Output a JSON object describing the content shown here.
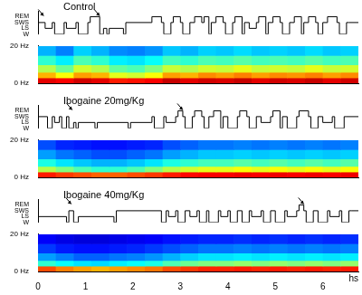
{
  "chart_data": [
    {
      "type": "hypnogram_spectrogram",
      "title": "Control",
      "xlim": [
        0,
        6.75
      ],
      "tick_labels": "y",
      "grid": false,
      "hypnogram": {
        "color": "#000000",
        "ylim": [
          0,
          4
        ],
        "yticks": [
          {
            "value": 0,
            "label": "W"
          },
          {
            "value": 1,
            "label": "LS"
          },
          {
            "value": 2,
            "label": "SWS"
          },
          {
            "value": 3,
            "label": "REM"
          }
        ],
        "x": [
          0,
          0.15,
          0.3,
          0.35,
          0.55,
          0.6,
          0.8,
          0.85,
          1.05,
          1.1,
          1.3,
          1.38,
          1.45,
          1.5,
          1.8,
          1.85,
          2.4,
          2.6,
          2.65,
          2.8,
          2.85,
          3.0,
          3.05,
          3.2,
          3.3,
          3.45,
          3.5,
          3.6,
          3.65,
          3.75,
          3.9,
          3.95,
          4.1,
          4.15,
          4.3,
          4.35,
          4.45,
          4.6,
          4.65,
          4.8,
          4.85,
          4.95,
          5.1,
          5.15,
          5.3,
          5.4,
          5.55,
          5.6,
          5.7,
          5.85,
          5.9,
          6.0,
          6.1,
          6.3,
          6.35,
          6.5,
          6.55,
          6.75
        ],
        "values": [
          0,
          2,
          1,
          2,
          0,
          2,
          1,
          2,
          0,
          2,
          3,
          0,
          1,
          0,
          1,
          0,
          2,
          3,
          2,
          0,
          2,
          3,
          2,
          0,
          2,
          3,
          2,
          3,
          0,
          2,
          3,
          2,
          0,
          2,
          3,
          0,
          2,
          1,
          2,
          3,
          0,
          2,
          3,
          2,
          0,
          2,
          3,
          0,
          2,
          3,
          2,
          0,
          2,
          3,
          2,
          0,
          2,
          2
        ],
        "arrows": [
          0.12,
          1.3
        ]
      },
      "spectrogram": {
        "ylim": [
          0,
          20
        ],
        "yticks": [
          {
            "value": 0,
            "label": "0 Hz"
          },
          {
            "value": 20,
            "label": "20 Hz"
          }
        ],
        "zlim": [
          0,
          1
        ],
        "time_bins": [
          0,
          0.375,
          0.75,
          1.125,
          1.5,
          1.875,
          2.25,
          2.625,
          3,
          3.375,
          3.75,
          4.125,
          4.5,
          4.875,
          5.25,
          5.625,
          6,
          6.375,
          6.75
        ],
        "freq_bins": [
          0,
          3,
          6,
          10,
          15,
          20
        ],
        "cells": [
          [
            0.9,
            0.88,
            0.92,
            0.9,
            0.85,
            0.86,
            0.88,
            0.93,
            0.9,
            0.92,
            0.91,
            0.93,
            0.9,
            0.92,
            0.91,
            0.93,
            0.9,
            0.92
          ],
          [
            0.7,
            0.62,
            0.72,
            0.7,
            0.6,
            0.58,
            0.62,
            0.72,
            0.7,
            0.74,
            0.72,
            0.75,
            0.72,
            0.74,
            0.73,
            0.75,
            0.72,
            0.74
          ],
          [
            0.55,
            0.48,
            0.58,
            0.55,
            0.47,
            0.45,
            0.5,
            0.57,
            0.55,
            0.58,
            0.57,
            0.6,
            0.57,
            0.58,
            0.57,
            0.6,
            0.57,
            0.58
          ],
          [
            0.42,
            0.36,
            0.45,
            0.42,
            0.36,
            0.35,
            0.38,
            0.44,
            0.42,
            0.45,
            0.44,
            0.46,
            0.44,
            0.45,
            0.44,
            0.46,
            0.44,
            0.45
          ],
          [
            0.3,
            0.25,
            0.33,
            0.3,
            0.26,
            0.25,
            0.27,
            0.32,
            0.3,
            0.33,
            0.32,
            0.34,
            0.32,
            0.33,
            0.32,
            0.34,
            0.32,
            0.33
          ]
        ]
      }
    },
    {
      "type": "hypnogram_spectrogram",
      "title": "Ibogaine 20mg/Kg",
      "xlim": [
        0,
        6.75
      ],
      "tick_labels": "y",
      "grid": false,
      "hypnogram": {
        "color": "#000000",
        "ylim": [
          0,
          4
        ],
        "yticks": [
          {
            "value": 0,
            "label": "W"
          },
          {
            "value": 1,
            "label": "LS"
          },
          {
            "value": 2,
            "label": "SWS"
          },
          {
            "value": 3,
            "label": "REM"
          }
        ],
        "x": [
          0,
          0.2,
          0.3,
          0.35,
          0.45,
          0.5,
          0.6,
          0.65,
          0.75,
          0.8,
          0.85,
          1.2,
          1.25,
          1.9,
          1.95,
          2.4,
          2.45,
          2.65,
          2.7,
          2.9,
          2.95,
          3.05,
          3.1,
          3.25,
          3.3,
          3.45,
          3.5,
          3.6,
          3.7,
          3.85,
          3.9,
          4.0,
          4.2,
          4.25,
          4.4,
          4.45,
          4.6,
          4.7,
          4.9,
          4.95,
          5.1,
          5.15,
          5.25,
          5.45,
          5.5,
          5.7,
          5.75,
          5.9,
          6.0,
          6.2,
          6.25,
          6.45,
          6.5,
          6.75
        ],
        "values": [
          0,
          2,
          0,
          2,
          1,
          2,
          0,
          2,
          0,
          1,
          0,
          1,
          0,
          1,
          0,
          1,
          2,
          0,
          2,
          1,
          2,
          3,
          2,
          0,
          2,
          3,
          2,
          0,
          2,
          3,
          0,
          2,
          0,
          2,
          3,
          2,
          0,
          2,
          1,
          2,
          3,
          0,
          2,
          0,
          2,
          3,
          2,
          0,
          2,
          1,
          2,
          0,
          2,
          2
        ],
        "arrows": [
          0.72,
          3.05
        ]
      },
      "spectrogram": {
        "ylim": [
          0,
          20
        ],
        "yticks": [
          {
            "value": 0,
            "label": "0 Hz"
          },
          {
            "value": 20,
            "label": "20 Hz"
          }
        ],
        "zlim": [
          0,
          1
        ],
        "time_bins": [
          0,
          0.375,
          0.75,
          1.125,
          1.5,
          1.875,
          2.25,
          2.625,
          3,
          3.375,
          3.75,
          4.125,
          4.5,
          4.875,
          5.25,
          5.625,
          6,
          6.375,
          6.75
        ],
        "freq_bins": [
          0,
          3,
          6,
          10,
          15,
          20
        ],
        "cells": [
          [
            0.85,
            0.82,
            0.8,
            0.78,
            0.78,
            0.8,
            0.82,
            0.85,
            0.87,
            0.88,
            0.88,
            0.89,
            0.88,
            0.89,
            0.88,
            0.89,
            0.88,
            0.89
          ],
          [
            0.55,
            0.5,
            0.45,
            0.42,
            0.42,
            0.45,
            0.5,
            0.55,
            0.58,
            0.6,
            0.6,
            0.62,
            0.6,
            0.62,
            0.6,
            0.62,
            0.6,
            0.62
          ],
          [
            0.4,
            0.35,
            0.32,
            0.3,
            0.3,
            0.32,
            0.35,
            0.4,
            0.42,
            0.44,
            0.44,
            0.46,
            0.44,
            0.46,
            0.44,
            0.46,
            0.44,
            0.46
          ],
          [
            0.28,
            0.24,
            0.22,
            0.2,
            0.2,
            0.22,
            0.24,
            0.28,
            0.3,
            0.32,
            0.32,
            0.33,
            0.32,
            0.33,
            0.32,
            0.33,
            0.32,
            0.33
          ],
          [
            0.2,
            0.16,
            0.15,
            0.14,
            0.14,
            0.15,
            0.16,
            0.2,
            0.22,
            0.24,
            0.24,
            0.25,
            0.24,
            0.25,
            0.24,
            0.25,
            0.24,
            0.25
          ]
        ]
      }
    },
    {
      "type": "hypnogram_spectrogram",
      "title": "Ibogaine 40mg/Kg",
      "xlim": [
        0,
        6.75
      ],
      "xticks": [
        0,
        1,
        2,
        3,
        4,
        5,
        6
      ],
      "xlabel": "hs",
      "grid": false,
      "hypnogram": {
        "color": "#000000",
        "ylim": [
          0,
          4
        ],
        "yticks": [
          {
            "value": 0,
            "label": "W"
          },
          {
            "value": 1,
            "label": "LS"
          },
          {
            "value": 2,
            "label": "SWS"
          },
          {
            "value": 3,
            "label": "REM"
          }
        ],
        "x": [
          0,
          0.6,
          0.65,
          0.75,
          0.85,
          1.6,
          1.65,
          2.6,
          2.7,
          2.75,
          2.9,
          2.95,
          3.1,
          3.2,
          3.35,
          3.4,
          3.55,
          3.6,
          3.8,
          3.85,
          4.0,
          4.05,
          4.2,
          4.3,
          4.45,
          4.5,
          4.7,
          4.75,
          4.9,
          5.0,
          5.2,
          5.25,
          5.45,
          5.5,
          5.6,
          5.65,
          5.8,
          5.9,
          6.1,
          6.15,
          6.35,
          6.4,
          6.55,
          6.6,
          6.75
        ],
        "values": [
          0,
          1,
          0,
          2,
          0,
          1,
          0,
          2,
          0,
          2,
          1,
          2,
          0,
          2,
          1,
          2,
          0,
          2,
          0,
          2,
          1,
          2,
          0,
          2,
          0,
          2,
          1,
          2,
          0,
          2,
          0,
          2,
          1,
          2,
          3,
          2,
          0,
          2,
          0,
          2,
          1,
          2,
          0,
          2,
          2
        ],
        "arrows": [
          0.7,
          5.6
        ]
      },
      "spectrogram": {
        "ylim": [
          0,
          20
        ],
        "yticks": [
          {
            "value": 0,
            "label": "0 Hz"
          },
          {
            "value": 20,
            "label": "20 Hz"
          }
        ],
        "zlim": [
          0,
          1
        ],
        "time_bins": [
          0,
          0.375,
          0.75,
          1.125,
          1.5,
          1.875,
          2.25,
          2.625,
          3,
          3.375,
          3.75,
          4.125,
          4.5,
          4.875,
          5.25,
          5.625,
          6,
          6.375,
          6.75
        ],
        "freq_bins": [
          0,
          3,
          6,
          10,
          15,
          20
        ],
        "cells": [
          [
            0.8,
            0.75,
            0.72,
            0.7,
            0.72,
            0.74,
            0.76,
            0.8,
            0.82,
            0.84,
            0.84,
            0.85,
            0.84,
            0.85,
            0.84,
            0.85,
            0.84,
            0.85
          ],
          [
            0.42,
            0.38,
            0.35,
            0.34,
            0.36,
            0.38,
            0.4,
            0.45,
            0.48,
            0.5,
            0.5,
            0.52,
            0.5,
            0.52,
            0.5,
            0.52,
            0.5,
            0.52
          ],
          [
            0.28,
            0.25,
            0.22,
            0.22,
            0.24,
            0.25,
            0.27,
            0.3,
            0.33,
            0.35,
            0.35,
            0.36,
            0.35,
            0.36,
            0.35,
            0.36,
            0.35,
            0.36
          ],
          [
            0.18,
            0.15,
            0.14,
            0.14,
            0.15,
            0.16,
            0.18,
            0.2,
            0.22,
            0.24,
            0.24,
            0.25,
            0.24,
            0.25,
            0.24,
            0.25,
            0.24,
            0.25
          ],
          [
            0.12,
            0.1,
            0.09,
            0.09,
            0.1,
            0.11,
            0.12,
            0.14,
            0.15,
            0.16,
            0.16,
            0.17,
            0.16,
            0.17,
            0.16,
            0.17,
            0.16,
            0.17
          ]
        ]
      }
    }
  ]
}
